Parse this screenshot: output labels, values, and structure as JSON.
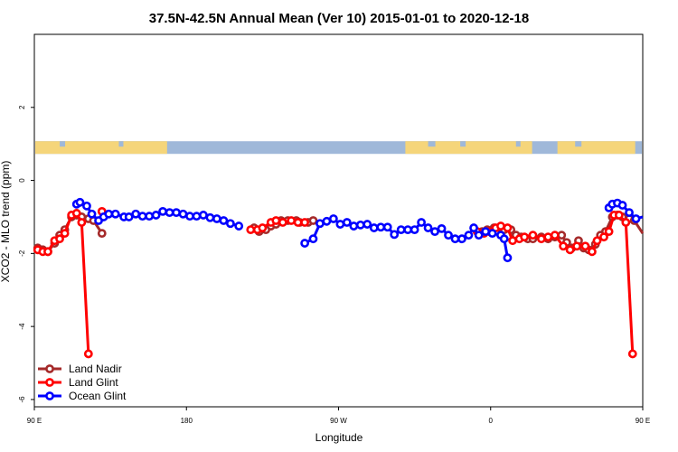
{
  "chart_data": {
    "type": "line",
    "title": "37.5N-42.5N Annual Mean (Ver 10)   2015-01-01 to 2020-12-18",
    "xlabel": "Longitude",
    "ylabel": "XCO2 - MLO trend (ppm)",
    "xlim": [
      0,
      360
    ],
    "ylim": [
      -6.2,
      4.0
    ],
    "x_ticks": [
      {
        "x": 0,
        "label": "90 E"
      },
      {
        "x": 90,
        "label": "180"
      },
      {
        "x": 180,
        "label": "90 W"
      },
      {
        "x": 270,
        "label": "0"
      },
      {
        "x": 360,
        "label": "90 E"
      },
      {
        "x": 450,
        "label": "180"
      }
    ],
    "y_ticks": [
      {
        "y": -6,
        "label": "-6"
      },
      {
        "y": -4,
        "label": "-4"
      },
      {
        "y": -2,
        "label": "-2"
      },
      {
        "y": 0,
        "label": "0"
      },
      {
        "y": 2,
        "label": "2"
      }
    ],
    "land_mask_band": {
      "y": 0.9,
      "land_color": "#f5d57a",
      "ocean_color": "#9fb8d9"
    },
    "legend_position": "bottom-left",
    "series": [
      {
        "name": "Land Nadir",
        "color": "#a52a2a",
        "segments": [
          [
            [
              2,
              -1.85
            ],
            [
              5,
              -1.9
            ],
            [
              8,
              -1.95
            ],
            [
              12,
              -1.72
            ],
            [
              15,
              -1.5
            ],
            [
              18,
              -1.35
            ],
            [
              22,
              -1.0
            ],
            [
              25,
              -0.95
            ],
            [
              28,
              -1.0
            ],
            [
              32,
              -1.05
            ],
            [
              35,
              -1.1
            ],
            [
              40,
              -1.45
            ]
          ],
          [
            [
              130,
              -1.3
            ],
            [
              133,
              -1.4
            ],
            [
              137,
              -1.35
            ],
            [
              140,
              -1.25
            ],
            [
              143,
              -1.2
            ],
            [
              146,
              -1.1
            ],
            [
              150,
              -1.1
            ],
            [
              155,
              -1.1
            ],
            [
              157,
              -1.15
            ],
            [
              162,
              -1.15
            ],
            [
              165,
              -1.1
            ]
          ],
          [
            [
              265,
              -1.4
            ],
            [
              268,
              -1.35
            ],
            [
              272,
              -1.3
            ],
            [
              275,
              -1.3
            ],
            [
              278,
              -1.35
            ],
            [
              282,
              -1.35
            ],
            [
              285,
              -1.5
            ],
            [
              288,
              -1.55
            ],
            [
              292,
              -1.6
            ],
            [
              295,
              -1.6
            ],
            [
              300,
              -1.55
            ],
            [
              304,
              -1.6
            ],
            [
              308,
              -1.55
            ],
            [
              312,
              -1.5
            ],
            [
              315,
              -1.7
            ],
            [
              318,
              -1.85
            ],
            [
              322,
              -1.65
            ],
            [
              325,
              -1.85
            ],
            [
              328,
              -1.9
            ],
            [
              332,
              -1.75
            ],
            [
              335,
              -1.5
            ],
            [
              338,
              -1.4
            ],
            [
              342,
              -1.0
            ],
            [
              345,
              -0.95
            ],
            [
              348,
              -1.0
            ],
            [
              352,
              -1.05
            ],
            [
              355,
              -1.1
            ],
            [
              360,
              -1.45
            ]
          ]
        ]
      },
      {
        "name": "Land Glint",
        "color": "#ff0000",
        "segments": [
          [
            [
              2,
              -1.9
            ],
            [
              5,
              -1.95
            ],
            [
              8,
              -1.95
            ],
            [
              12,
              -1.65
            ],
            [
              15,
              -1.6
            ],
            [
              18,
              -1.45
            ],
            [
              22,
              -0.95
            ],
            [
              25,
              -0.9
            ],
            [
              28,
              -1.15
            ],
            [
              32,
              -4.75
            ]
          ],
          [
            [
              40,
              -0.85
            ]
          ],
          [
            [
              128,
              -1.35
            ],
            [
              132,
              -1.35
            ],
            [
              135,
              -1.3
            ],
            [
              140,
              -1.15
            ],
            [
              143,
              -1.1
            ],
            [
              147,
              -1.15
            ],
            [
              152,
              -1.1
            ],
            [
              156,
              -1.15
            ],
            [
              160,
              -1.15
            ]
          ],
          [
            [
              262,
              -1.4
            ],
            [
              266,
              -1.45
            ],
            [
              269,
              -1.4
            ],
            [
              273,
              -1.3
            ],
            [
              276,
              -1.25
            ],
            [
              280,
              -1.3
            ],
            [
              283,
              -1.65
            ],
            [
              287,
              -1.6
            ],
            [
              290,
              -1.55
            ],
            [
              295,
              -1.5
            ],
            [
              300,
              -1.6
            ],
            [
              304,
              -1.55
            ],
            [
              308,
              -1.5
            ],
            [
              313,
              -1.8
            ],
            [
              317,
              -1.9
            ],
            [
              321,
              -1.8
            ],
            [
              326,
              -1.8
            ],
            [
              330,
              -1.95
            ],
            [
              333,
              -1.65
            ],
            [
              337,
              -1.55
            ],
            [
              340,
              -1.4
            ],
            [
              343,
              -0.95
            ],
            [
              346,
              -0.95
            ],
            [
              350,
              -1.15
            ],
            [
              354,
              -4.75
            ]
          ],
          [
            [
              360,
              -0.85
            ]
          ]
        ]
      },
      {
        "name": "Ocean Glint",
        "color": "#0000ff",
        "segments": [
          [
            [
              25,
              -0.65
            ],
            [
              27,
              -0.6
            ],
            [
              31,
              -0.7
            ],
            [
              34,
              -0.92
            ],
            [
              38,
              -1.1
            ],
            [
              41,
              -1.0
            ],
            [
              44,
              -0.92
            ],
            [
              48,
              -0.92
            ],
            [
              53,
              -1.0
            ],
            [
              56,
              -1.0
            ],
            [
              60,
              -0.92
            ],
            [
              64,
              -0.98
            ],
            [
              68,
              -0.98
            ],
            [
              72,
              -0.95
            ],
            [
              76,
              -0.85
            ],
            [
              80,
              -0.88
            ],
            [
              84,
              -0.88
            ],
            [
              88,
              -0.92
            ],
            [
              92,
              -0.98
            ],
            [
              96,
              -0.98
            ],
            [
              100,
              -0.95
            ],
            [
              104,
              -1.02
            ],
            [
              108,
              -1.05
            ],
            [
              112,
              -1.1
            ],
            [
              116,
              -1.18
            ],
            [
              121,
              -1.25
            ]
          ],
          [
            [
              160,
              -1.72
            ],
            [
              165,
              -1.6
            ],
            [
              169,
              -1.18
            ],
            [
              173,
              -1.12
            ],
            [
              177,
              -1.05
            ],
            [
              181,
              -1.2
            ],
            [
              185,
              -1.15
            ],
            [
              189,
              -1.25
            ],
            [
              193,
              -1.22
            ],
            [
              197,
              -1.2
            ],
            [
              201,
              -1.3
            ],
            [
              205,
              -1.28
            ],
            [
              209,
              -1.28
            ],
            [
              213,
              -1.48
            ],
            [
              217,
              -1.35
            ],
            [
              221,
              -1.35
            ],
            [
              225,
              -1.35
            ],
            [
              229,
              -1.15
            ],
            [
              233,
              -1.3
            ],
            [
              237,
              -1.4
            ],
            [
              241,
              -1.32
            ],
            [
              245,
              -1.5
            ],
            [
              249,
              -1.6
            ],
            [
              253,
              -1.6
            ],
            [
              257,
              -1.5
            ],
            [
              260,
              -1.3
            ],
            [
              263,
              -1.5
            ],
            [
              267,
              -1.4
            ],
            [
              271,
              -1.45
            ],
            [
              276,
              -1.5
            ],
            [
              278,
              -1.6
            ],
            [
              280,
              -2.12
            ]
          ],
          [
            [
              340,
              -0.75
            ],
            [
              342,
              -0.65
            ],
            [
              345,
              -0.62
            ],
            [
              348,
              -0.68
            ],
            [
              352,
              -0.88
            ],
            [
              356,
              -1.05
            ],
            [
              360,
              -1.0
            ],
            [
              364,
              -0.92
            ],
            [
              368,
              -0.88
            ]
          ]
        ]
      }
    ]
  }
}
